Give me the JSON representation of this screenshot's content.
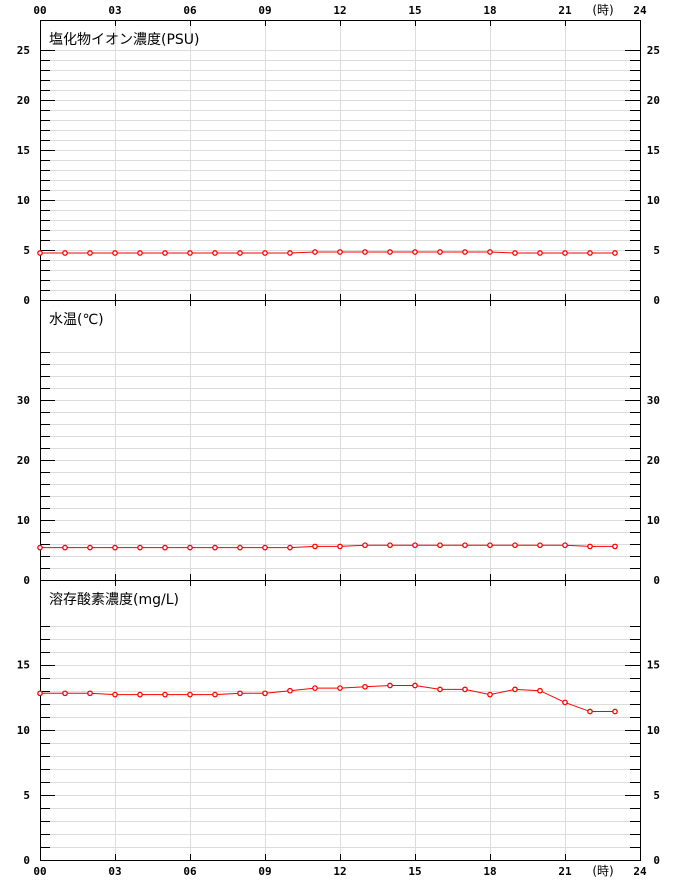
{
  "chart_data": [
    {
      "type": "line",
      "title": "塩化物イオン濃度(PSU)",
      "x": [
        0,
        1,
        2,
        3,
        4,
        5,
        6,
        7,
        8,
        9,
        10,
        11,
        12,
        13,
        14,
        15,
        16,
        17,
        18,
        19,
        20,
        21,
        22,
        23
      ],
      "values": [
        4.7,
        4.7,
        4.7,
        4.7,
        4.7,
        4.7,
        4.7,
        4.7,
        4.7,
        4.7,
        4.7,
        4.8,
        4.8,
        4.8,
        4.8,
        4.8,
        4.8,
        4.8,
        4.8,
        4.7,
        4.7,
        4.7,
        4.7,
        4.7
      ],
      "ylim": [
        0,
        28
      ],
      "yticks": [
        "0",
        "5",
        "10",
        "15",
        "20",
        "25"
      ],
      "ytick_values": [
        0,
        5,
        10,
        15,
        20,
        25
      ],
      "grid_max": 25,
      "grid_step": 1,
      "grid": true
    },
    {
      "type": "line",
      "title": "水温(℃)",
      "x": [
        0,
        1,
        2,
        3,
        4,
        5,
        6,
        7,
        8,
        9,
        10,
        11,
        12,
        13,
        14,
        15,
        16,
        17,
        18,
        19,
        20,
        21,
        22,
        23
      ],
      "values": [
        5.4,
        5.4,
        5.4,
        5.4,
        5.4,
        5.4,
        5.4,
        5.4,
        5.4,
        5.4,
        5.4,
        5.6,
        5.6,
        5.8,
        5.8,
        5.8,
        5.8,
        5.8,
        5.8,
        5.8,
        5.8,
        5.8,
        5.6,
        5.6
      ],
      "ylim": [
        0,
        46.7
      ],
      "yticks": [
        "0",
        "10",
        "20",
        "30"
      ],
      "ytick_values": [
        0,
        10,
        20,
        30
      ],
      "grid_max": 38,
      "grid_step": 2,
      "grid": true
    },
    {
      "type": "line",
      "title": "溶存酸素濃度(mg/L)",
      "x": [
        0,
        1,
        2,
        3,
        4,
        5,
        6,
        7,
        8,
        9,
        10,
        11,
        12,
        13,
        14,
        15,
        16,
        17,
        18,
        19,
        20,
        21,
        22,
        23
      ],
      "values": [
        12.8,
        12.8,
        12.8,
        12.7,
        12.7,
        12.7,
        12.7,
        12.7,
        12.8,
        12.8,
        13.0,
        13.2,
        13.2,
        13.3,
        13.4,
        13.4,
        13.1,
        13.1,
        12.7,
        13.1,
        13.0,
        12.1,
        11.4,
        11.4
      ],
      "ylim": [
        0,
        21.5
      ],
      "yticks": [
        "0",
        "5",
        "10",
        "15"
      ],
      "ytick_values": [
        0,
        5,
        10,
        15
      ],
      "grid_max": 18,
      "grid_step": 1,
      "grid": true
    }
  ],
  "x_axis": {
    "ticks": [
      "00",
      "03",
      "06",
      "09",
      "12",
      "15",
      "18",
      "21",
      "24"
    ],
    "tick_values": [
      0,
      3,
      6,
      9,
      12,
      15,
      18,
      21,
      24
    ],
    "xlim": [
      0,
      24
    ],
    "unit_label": "(時)"
  },
  "colors": {
    "series": "#ff0000",
    "grid": "#dcdcdc",
    "axis": "#000000"
  }
}
